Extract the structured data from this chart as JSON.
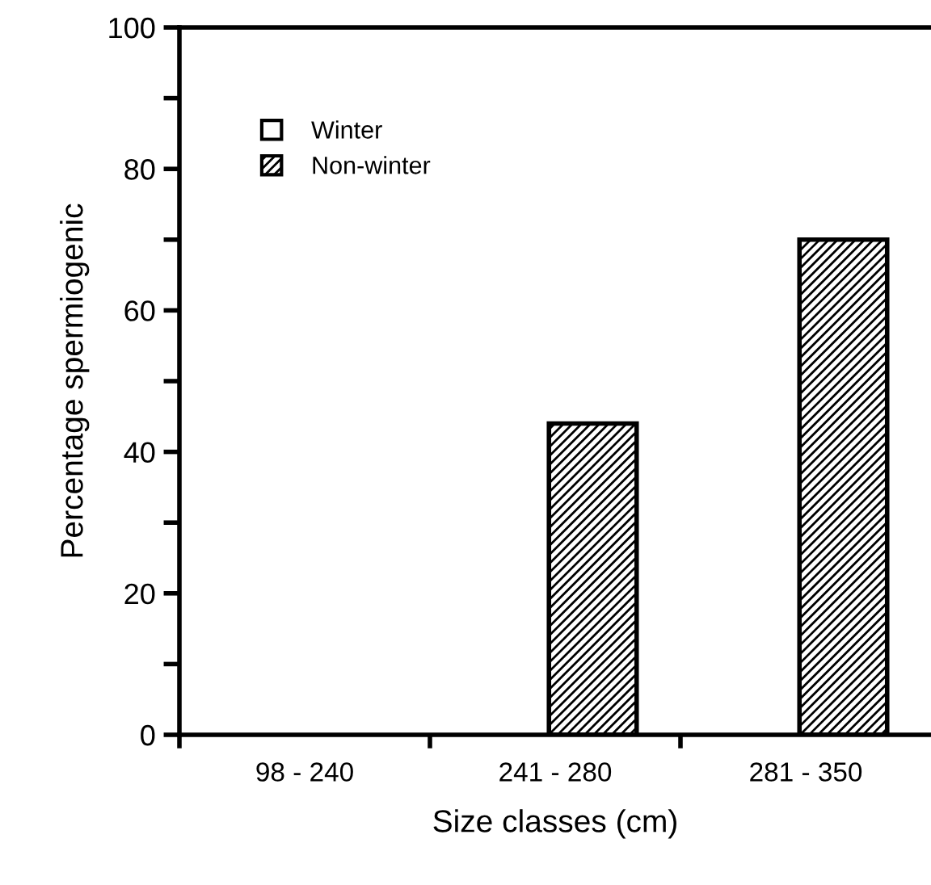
{
  "chart_data": {
    "type": "bar",
    "xlabel": "Size classes (cm)",
    "ylabel": "Percentage spermiogenic",
    "categories": [
      "98 - 240",
      "241 - 280",
      "281 - 350"
    ],
    "series": [
      {
        "name": "Winter",
        "color": "#ffffff",
        "values": [
          0,
          0,
          0
        ]
      },
      {
        "name": "Non-winter",
        "color": "#000000",
        "values": [
          0,
          44,
          70
        ]
      }
    ],
    "ylim": [
      0,
      100
    ],
    "yticks": [
      0,
      {
        "value": 10,
        "label": null
      },
      20,
      {
        "value": 30,
        "label": null
      },
      40,
      {
        "value": 50,
        "label": null
      },
      60,
      {
        "value": 70,
        "label": null
      },
      80,
      {
        "value": 90,
        "label": null
      },
      100
    ],
    "grid": false,
    "legend": "top left"
  }
}
